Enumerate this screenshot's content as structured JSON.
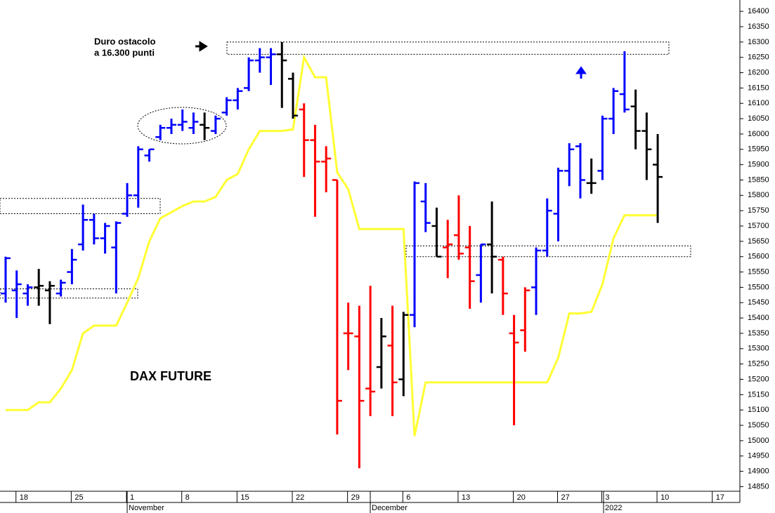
{
  "chart_data": {
    "type": "ohlc",
    "title": "DAX FUTURE",
    "annotation": [
      "Duro ostacolo",
      "a 16.300 punti"
    ],
    "categories": [
      null,
      "18",
      null,
      null,
      null,
      null,
      "25",
      null,
      null,
      null,
      null,
      "1",
      null,
      null,
      null,
      null,
      "8",
      null,
      null,
      null,
      null,
      "15",
      null,
      null,
      null,
      null,
      "22",
      null,
      null,
      null,
      null,
      "29",
      null,
      null,
      null,
      null,
      "6",
      null,
      null,
      null,
      null,
      "13",
      null,
      null,
      null,
      null,
      "20",
      null,
      null,
      null,
      "27",
      null,
      null,
      null,
      "3",
      null,
      null,
      null,
      null,
      "10",
      null,
      null,
      null,
      null,
      "17",
      null,
      null
    ],
    "months": [
      "November",
      "December",
      "2022"
    ],
    "open": [
      15480,
      15490,
      15480,
      15500,
      15490,
      15480,
      15550,
      15640,
      15720,
      15660,
      15630,
      15740,
      15800,
      15930,
      15990,
      16020,
      16030,
      16020,
      16030,
      16010,
      16070,
      16110,
      16150,
      16240,
      16250,
      16260,
      16180,
      16080,
      15980,
      15910,
      15850,
      15350,
      15340,
      15170,
      15240,
      15310,
      15200,
      15410,
      15780,
      15700,
      15630,
      15670,
      15630,
      15540,
      15640,
      15590,
      15350,
      15360,
      15500,
      15620,
      15740,
      15880,
      15960,
      15840,
      15880,
      16050,
      16130,
      16090,
      16010,
      15900,
      null,
      null,
      null,
      null,
      null,
      null,
      null
    ],
    "high": [
      15600,
      15555,
      15510,
      15560,
      15520,
      15525,
      15625,
      15770,
      15740,
      15710,
      15715,
      15840,
      15960,
      15950,
      16030,
      16050,
      16080,
      16070,
      16070,
      16060,
      16120,
      16150,
      16250,
      16280,
      16280,
      16300,
      16200,
      16100,
      16030,
      15960,
      15850,
      15450,
      15440,
      15505,
      15400,
      15440,
      15420,
      15845,
      15840,
      15760,
      15720,
      15800,
      15700,
      15640,
      15780,
      15600,
      15410,
      15500,
      15630,
      15790,
      15890,
      15970,
      15970,
      15920,
      16060,
      16150,
      16270,
      16145,
      16070,
      16000,
      null,
      null,
      null,
      null,
      null,
      null,
      null
    ],
    "low": [
      15450,
      15400,
      15440,
      15440,
      15380,
      15470,
      15510,
      15620,
      15640,
      15610,
      15480,
      15730,
      15760,
      15910,
      15980,
      16000,
      16010,
      16000,
      15980,
      16000,
      16060,
      16080,
      16140,
      16200,
      16160,
      16085,
      16050,
      15860,
      15730,
      15810,
      15020,
      15230,
      14910,
      15080,
      15170,
      15080,
      15145,
      15370,
      15680,
      15600,
      15530,
      15590,
      15430,
      15450,
      15480,
      15410,
      15050,
      15290,
      15410,
      15600,
      15650,
      15830,
      15790,
      15805,
      15850,
      16000,
      16070,
      15950,
      15850,
      15710,
      null,
      null,
      null,
      null,
      null,
      null,
      null
    ],
    "close": [
      15595,
      15510,
      15500,
      15505,
      15505,
      15515,
      15590,
      15720,
      15660,
      15700,
      15710,
      15800,
      15950,
      15950,
      16020,
      16030,
      16040,
      16040,
      16020,
      16050,
      16110,
      16140,
      16240,
      16250,
      16260,
      16240,
      16060,
      15980,
      15910,
      15920,
      15130,
      15350,
      15130,
      15160,
      15340,
      15190,
      15410,
      15840,
      15710,
      15600,
      15640,
      15610,
      15520,
      15640,
      15600,
      15480,
      15320,
      15490,
      15620,
      15750,
      15880,
      15950,
      15850,
      15840,
      16050,
      16140,
      16080,
      16010,
      15950,
      15860,
      null,
      null,
      null,
      null,
      null,
      null,
      null
    ],
    "bar_colors": [
      "blue",
      "blue",
      "blue",
      "black",
      "black",
      "blue",
      "blue",
      "blue",
      "blue",
      "blue",
      "blue",
      "blue",
      "blue",
      "blue",
      "blue",
      "blue",
      "blue",
      "blue",
      "black",
      "blue",
      "blue",
      "blue",
      "blue",
      "blue",
      "blue",
      "black",
      "black",
      "red",
      "red",
      "red",
      "red",
      "red",
      "red",
      "red",
      "black",
      "red",
      "black",
      "blue",
      "blue",
      "black",
      "red",
      "red",
      "red",
      "blue",
      "black",
      "red",
      "red",
      "red",
      "blue",
      "blue",
      "blue",
      "blue",
      "blue",
      "black",
      "blue",
      "blue",
      "blue",
      "black",
      "black",
      "black",
      null,
      null,
      null,
      null,
      null,
      null,
      null
    ],
    "line": {
      "color": "#ffff33",
      "values": [
        15100,
        15100,
        15100,
        15125,
        15125,
        15170,
        15230,
        15350,
        15375,
        15375,
        15375,
        15450,
        15530,
        15650,
        15725,
        15745,
        15765,
        15780,
        15780,
        15795,
        15850,
        15870,
        15950,
        16010,
        16010,
        16010,
        16015,
        16250,
        16185,
        16185,
        15875,
        15820,
        15690,
        15690,
        15690,
        15690,
        15690,
        15015,
        15190,
        15190,
        15190,
        15190,
        15190,
        15190,
        15190,
        15190,
        15190,
        15190,
        15190,
        15190,
        15270,
        15415,
        15415,
        15420,
        15510,
        15660,
        15735,
        15735,
        15735,
        15735,
        null,
        null,
        null,
        null,
        null,
        null,
        null
      ]
    },
    "zones": [
      {
        "low": 15740,
        "high": 15790
      },
      {
        "low": 15465,
        "high": 15495
      },
      {
        "low": 16260,
        "high": 16300
      },
      {
        "low": 15600,
        "high": 15635
      }
    ],
    "ylim": [
      14835,
      16437
    ],
    "yticks": [
      14850,
      14900,
      14950,
      15000,
      15050,
      15100,
      15150,
      15200,
      15250,
      15300,
      15350,
      15400,
      15450,
      15500,
      15550,
      15600,
      15650,
      15700,
      15750,
      15800,
      15850,
      15900,
      15950,
      16000,
      16050,
      16100,
      16150,
      16200,
      16250,
      16300,
      16350,
      16400
    ]
  }
}
